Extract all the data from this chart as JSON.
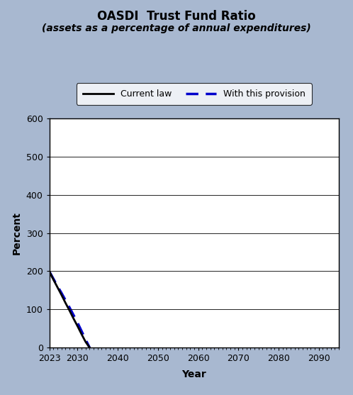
{
  "title_line1": "OASDI  Trust Fund Ratio",
  "title_line2": "(assets as a percentage of annual expenditures)",
  "xlabel": "Year",
  "ylabel": "Percent",
  "background_color": "#a8b8d0",
  "plot_bg_color": "#ffffff",
  "ylim": [
    0,
    600
  ],
  "yticks": [
    0,
    100,
    200,
    300,
    400,
    500,
    600
  ],
  "xlim": [
    2023,
    2095
  ],
  "xticks": [
    2023,
    2030,
    2040,
    2050,
    2060,
    2070,
    2080,
    2090
  ],
  "current_law_x": [
    2023,
    2024,
    2025,
    2026,
    2027,
    2028,
    2029,
    2030,
    2031,
    2032,
    2033
  ],
  "current_law_y": [
    199,
    178,
    158,
    138,
    117,
    97,
    76,
    56,
    35,
    15,
    0
  ],
  "provision_x": [
    2023,
    2024,
    2025,
    2026,
    2027,
    2028,
    2029,
    2030,
    2031,
    2032,
    2033
  ],
  "provision_y": [
    199,
    180,
    161,
    143,
    124,
    105,
    85,
    65,
    43,
    21,
    0
  ],
  "current_law_color": "#000000",
  "provision_color": "#0000cc",
  "current_law_label": "Current law",
  "provision_label": "With this provision",
  "legend_box_color": "#ffffff",
  "title_fontsize": 12,
  "subtitle_fontsize": 10,
  "axis_label_fontsize": 10,
  "tick_fontsize": 9,
  "legend_fontsize": 9
}
